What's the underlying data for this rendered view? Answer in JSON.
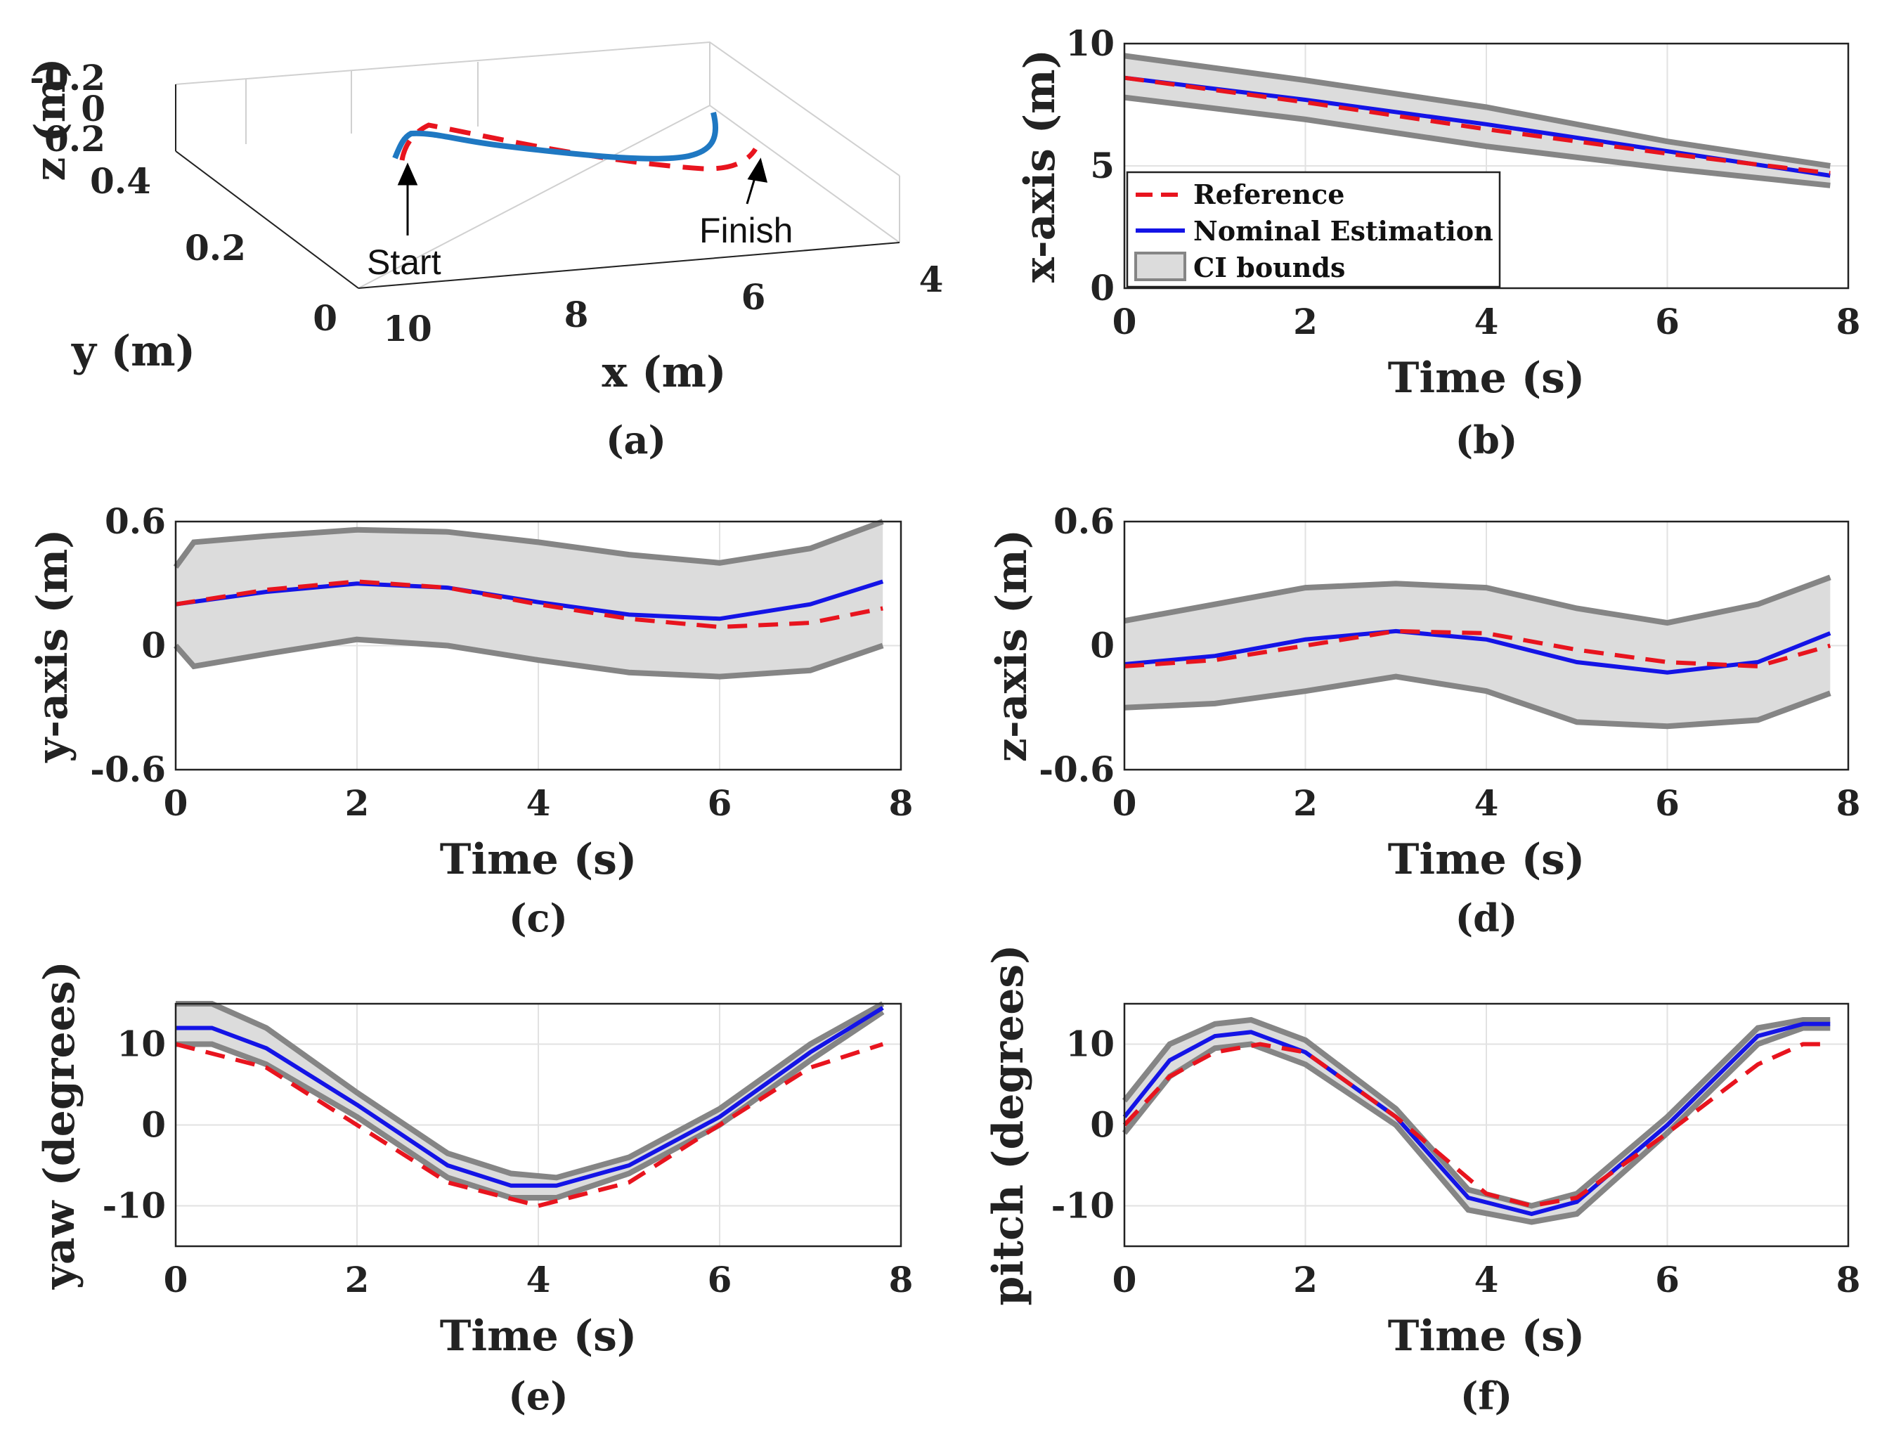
{
  "chart_data": [
    {
      "id": "a",
      "type": "line3d",
      "panel_label": "(a)",
      "xlabel": "x (m)",
      "ylabel": "y (m)",
      "zlabel": "z (m)",
      "xticks": [
        "10",
        "8",
        "6",
        "4"
      ],
      "yticks": [
        "0",
        "0.2",
        "0.4"
      ],
      "zticks": [
        "-0.2",
        "0",
        "0.2"
      ],
      "annotations": {
        "start": "Start",
        "finish": "Finish"
      },
      "colors": {
        "reference": "#e8141e",
        "estimation": "#1f78c2"
      }
    },
    {
      "id": "b",
      "type": "line",
      "panel_label": "(b)",
      "xlabel": "Time (s)",
      "ylabel": "x-axis (m)",
      "xlim": [
        0,
        8
      ],
      "ylim": [
        0,
        10
      ],
      "xticks": [
        0,
        2,
        4,
        6,
        8
      ],
      "yticks": [
        0,
        5,
        10
      ],
      "legend": {
        "position": "bottom-left",
        "entries": [
          "Reference",
          "Nominal Estimation",
          "CI bounds"
        ]
      },
      "series": [
        {
          "name": "Reference",
          "x": [
            0,
            2,
            4,
            6,
            7.8
          ],
          "y": [
            8.6,
            7.6,
            6.5,
            5.5,
            4.7
          ]
        },
        {
          "name": "Nominal Estimation",
          "x": [
            0,
            2,
            4,
            6,
            7.8
          ],
          "y": [
            8.6,
            7.7,
            6.7,
            5.6,
            4.6
          ]
        },
        {
          "name": "CI upper",
          "x": [
            0,
            2,
            4,
            6,
            7.8
          ],
          "y": [
            9.5,
            8.5,
            7.4,
            6.0,
            5.0
          ]
        },
        {
          "name": "CI lower",
          "x": [
            0,
            2,
            4,
            6,
            7.8
          ],
          "y": [
            7.8,
            6.9,
            5.8,
            4.9,
            4.2
          ]
        }
      ]
    },
    {
      "id": "c",
      "type": "line",
      "panel_label": "(c)",
      "xlabel": "Time (s)",
      "ylabel": "y-axis (m)",
      "xlim": [
        0,
        8
      ],
      "ylim": [
        -0.6,
        0.6
      ],
      "xticks": [
        0,
        2,
        4,
        6,
        8
      ],
      "yticks": [
        -0.6,
        0,
        0.6
      ],
      "series": [
        {
          "name": "Reference",
          "x": [
            0,
            1,
            2,
            3,
            4,
            5,
            6,
            7,
            7.8
          ],
          "y": [
            0.2,
            0.27,
            0.31,
            0.28,
            0.2,
            0.13,
            0.09,
            0.11,
            0.18
          ]
        },
        {
          "name": "Nominal Estimation",
          "x": [
            0,
            1,
            2,
            3,
            4,
            5,
            6,
            7,
            7.8
          ],
          "y": [
            0.2,
            0.26,
            0.3,
            0.28,
            0.21,
            0.15,
            0.13,
            0.2,
            0.31
          ]
        },
        {
          "name": "CI upper",
          "x": [
            0,
            0.2,
            1,
            2,
            3,
            4,
            5,
            6,
            7,
            7.8
          ],
          "y": [
            0.38,
            0.5,
            0.53,
            0.56,
            0.55,
            0.5,
            0.44,
            0.4,
            0.47,
            0.6
          ]
        },
        {
          "name": "CI lower",
          "x": [
            0,
            0.2,
            1,
            2,
            3,
            4,
            5,
            6,
            7,
            7.8
          ],
          "y": [
            0.0,
            -0.1,
            -0.04,
            0.03,
            0.0,
            -0.07,
            -0.13,
            -0.15,
            -0.12,
            0.0
          ]
        }
      ]
    },
    {
      "id": "d",
      "type": "line",
      "panel_label": "(d)",
      "xlabel": "Time (s)",
      "ylabel": "z-axis (m)",
      "xlim": [
        0,
        8
      ],
      "ylim": [
        -0.6,
        0.6
      ],
      "xticks": [
        0,
        2,
        4,
        6,
        8
      ],
      "yticks": [
        -0.6,
        0,
        0.6
      ],
      "series": [
        {
          "name": "Reference",
          "x": [
            0,
            1,
            2,
            3,
            4,
            5,
            6,
            7,
            7.8
          ],
          "y": [
            -0.1,
            -0.07,
            0.0,
            0.07,
            0.06,
            -0.02,
            -0.08,
            -0.1,
            0.0
          ]
        },
        {
          "name": "Nominal Estimation",
          "x": [
            0,
            1,
            2,
            3,
            4,
            5,
            6,
            7,
            7.8
          ],
          "y": [
            -0.09,
            -0.05,
            0.03,
            0.07,
            0.03,
            -0.08,
            -0.13,
            -0.08,
            0.06
          ]
        },
        {
          "name": "CI upper",
          "x": [
            0,
            1,
            2,
            3,
            4,
            5,
            6,
            7,
            7.8
          ],
          "y": [
            0.12,
            0.2,
            0.28,
            0.3,
            0.28,
            0.18,
            0.11,
            0.2,
            0.33
          ]
        },
        {
          "name": "CI lower",
          "x": [
            0,
            1,
            2,
            3,
            4,
            5,
            6,
            7,
            7.8
          ],
          "y": [
            -0.3,
            -0.28,
            -0.22,
            -0.15,
            -0.22,
            -0.37,
            -0.39,
            -0.36,
            -0.23
          ]
        }
      ]
    },
    {
      "id": "e",
      "type": "line",
      "panel_label": "(e)",
      "xlabel": "Time (s)",
      "ylabel": "yaw (degrees)",
      "xlim": [
        0,
        8
      ],
      "ylim": [
        -15,
        15
      ],
      "xticks": [
        0,
        2,
        4,
        6,
        8
      ],
      "yticks": [
        -10,
        0,
        10
      ],
      "series": [
        {
          "name": "Reference",
          "x": [
            0,
            1,
            2,
            3,
            4,
            5,
            6,
            7,
            7.8
          ],
          "y": [
            10,
            7.1,
            0,
            -7.1,
            -10,
            -7.1,
            0,
            7.1,
            10
          ]
        },
        {
          "name": "Nominal Estimation",
          "x": [
            0,
            0.4,
            1,
            2,
            3,
            3.7,
            4.2,
            5,
            6,
            7,
            7.8
          ],
          "y": [
            12,
            12,
            9.5,
            2.5,
            -5,
            -7.5,
            -7.5,
            -5,
            1,
            9,
            14.5
          ]
        },
        {
          "name": "CI upper",
          "x": [
            0,
            0.4,
            1,
            2,
            3,
            3.7,
            4.2,
            5,
            6,
            7,
            7.8
          ],
          "y": [
            15,
            15,
            12,
            4,
            -3.5,
            -6,
            -6.5,
            -4,
            2,
            10,
            15
          ]
        },
        {
          "name": "CI lower",
          "x": [
            0,
            0.4,
            1,
            2,
            3,
            3.7,
            4.2,
            5,
            6,
            7,
            7.8
          ],
          "y": [
            10,
            10,
            7.5,
            1,
            -6.5,
            -9,
            -9,
            -6,
            0,
            8,
            14
          ]
        }
      ]
    },
    {
      "id": "f",
      "type": "line",
      "panel_label": "(f)",
      "xlabel": "Time (s)",
      "ylabel": "pitch (degrees)",
      "xlim": [
        0,
        8
      ],
      "ylim": [
        -15,
        15
      ],
      "xticks": [
        0,
        2,
        4,
        6,
        8
      ],
      "yticks": [
        -10,
        0,
        10
      ],
      "series": [
        {
          "name": "Reference",
          "x": [
            0,
            0.5,
            1,
            1.5,
            2,
            3,
            4,
            4.5,
            5,
            6,
            7,
            7.5,
            7.8
          ],
          "y": [
            0,
            6,
            9,
            10,
            9,
            1,
            -8.5,
            -10,
            -9,
            -1,
            7.5,
            10,
            10
          ]
        },
        {
          "name": "Nominal Estimation",
          "x": [
            0,
            0.5,
            1,
            1.4,
            2,
            3,
            3.8,
            4.5,
            5,
            6,
            7,
            7.5,
            7.8
          ],
          "y": [
            1,
            8,
            11,
            11.5,
            9,
            1,
            -9,
            -11,
            -9.5,
            0,
            11,
            12.5,
            12.5
          ]
        },
        {
          "name": "CI upper",
          "x": [
            0,
            0.5,
            1,
            1.4,
            2,
            3,
            3.8,
            4.5,
            5,
            6,
            7,
            7.5,
            7.8
          ],
          "y": [
            3,
            10,
            12.5,
            13,
            10.5,
            2,
            -8,
            -10,
            -8.5,
            1,
            12,
            13,
            13
          ]
        },
        {
          "name": "CI lower",
          "x": [
            0,
            0.5,
            1,
            1.4,
            2,
            3,
            3.8,
            4.5,
            5,
            6,
            7,
            7.5,
            7.8
          ],
          "y": [
            -1,
            6,
            9.5,
            10,
            7.5,
            0,
            -10.5,
            -12,
            -11,
            -1,
            10,
            12,
            12
          ]
        }
      ]
    }
  ]
}
